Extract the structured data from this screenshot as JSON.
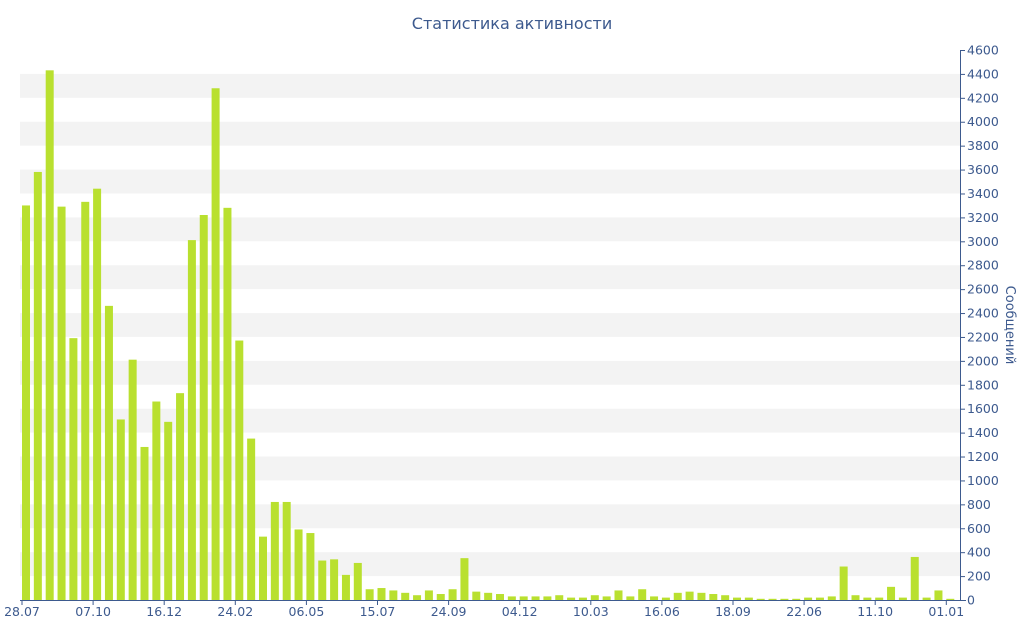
{
  "chart_data": {
    "type": "bar",
    "title": "Статистика активности",
    "ylabel": "Сообщений",
    "xlabel": "",
    "ylim": [
      0,
      4600
    ],
    "y_ticks": [
      0,
      200,
      400,
      600,
      800,
      1000,
      1200,
      1400,
      1600,
      1800,
      2000,
      2200,
      2400,
      2600,
      2800,
      3000,
      3200,
      3400,
      3600,
      3800,
      4000,
      4200,
      4400,
      4600
    ],
    "x_tick_labels": [
      {
        "label": "28.07",
        "index": 0
      },
      {
        "label": "07.10",
        "index": 6
      },
      {
        "label": "16.12",
        "index": 12
      },
      {
        "label": "24.02",
        "index": 18
      },
      {
        "label": "06.05",
        "index": 24
      },
      {
        "label": "15.07",
        "index": 30
      },
      {
        "label": "24.09",
        "index": 36
      },
      {
        "label": "04.12",
        "index": 42
      },
      {
        "label": "10.03",
        "index": 48
      },
      {
        "label": "16.06",
        "index": 54
      },
      {
        "label": "18.09",
        "index": 60
      },
      {
        "label": "22.06",
        "index": 66
      },
      {
        "label": "11.10",
        "index": 72
      },
      {
        "label": "01.01",
        "index": 78
      }
    ],
    "values": [
      3300,
      3580,
      4430,
      3290,
      2190,
      3330,
      3440,
      2460,
      1510,
      2010,
      1280,
      1660,
      1490,
      1730,
      3010,
      3220,
      4280,
      3280,
      2170,
      1350,
      530,
      820,
      820,
      590,
      560,
      330,
      340,
      210,
      310,
      90,
      100,
      80,
      60,
      40,
      80,
      50,
      90,
      350,
      70,
      60,
      50,
      30,
      30,
      30,
      30,
      40,
      20,
      20,
      40,
      30,
      80,
      30,
      90,
      30,
      20,
      60,
      70,
      60,
      50,
      40,
      20,
      20,
      10,
      10,
      10,
      10,
      20,
      20,
      30,
      280,
      40,
      20,
      20,
      110,
      20,
      360,
      20,
      80,
      10
    ],
    "colors": {
      "bar": "#b9e02f",
      "grid_band": "#f3f3f3",
      "axis": "#3d5a8e"
    },
    "grid": "horizontal-bands",
    "yaxis_position": "right"
  }
}
